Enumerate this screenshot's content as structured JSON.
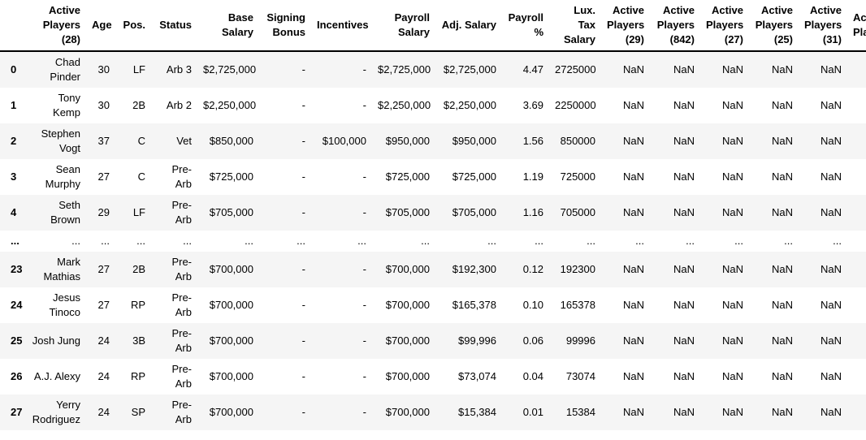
{
  "colors": {
    "background": "#ffffff",
    "stripe_row": "#f5f5f5",
    "header_border": "#000000",
    "text": "#000000"
  },
  "table": {
    "index_header": "",
    "columns": [
      {
        "key": "active_players_28",
        "label": "Active Players (28)"
      },
      {
        "key": "age",
        "label": "Age"
      },
      {
        "key": "pos",
        "label": "Pos."
      },
      {
        "key": "status",
        "label": "Status"
      },
      {
        "key": "base_salary",
        "label": "Base Salary"
      },
      {
        "key": "signing_bonus",
        "label": "Signing Bonus"
      },
      {
        "key": "incentives",
        "label": "Incentives"
      },
      {
        "key": "payroll_salary",
        "label": "Payroll Salary"
      },
      {
        "key": "adj_salary",
        "label": "Adj. Salary"
      },
      {
        "key": "payroll_pct",
        "label": "Payroll %"
      },
      {
        "key": "lux_tax_salary",
        "label": "Lux. Tax Salary"
      },
      {
        "key": "active_players_29",
        "label": "Active Players (29)"
      },
      {
        "key": "active_players_842",
        "label": "Active Players (842)"
      },
      {
        "key": "active_players_27",
        "label": "Active Players (27)"
      },
      {
        "key": "active_players_25",
        "label": "Active Players (25)"
      },
      {
        "key": "active_players_31",
        "label": "Active Players (31)"
      },
      {
        "key": "active_players_clipped",
        "label": "Active Players",
        "clipped": true
      }
    ],
    "rows": [
      {
        "index": "0",
        "cells": [
          "Chad Pinder",
          "30",
          "LF",
          "Arb 3",
          "$2,725,000",
          "-",
          "-",
          "$2,725,000",
          "$2,725,000",
          "4.47",
          "2725000",
          "NaN",
          "NaN",
          "NaN",
          "NaN",
          "NaN",
          ""
        ]
      },
      {
        "index": "1",
        "cells": [
          "Tony Kemp",
          "30",
          "2B",
          "Arb 2",
          "$2,250,000",
          "-",
          "-",
          "$2,250,000",
          "$2,250,000",
          "3.69",
          "2250000",
          "NaN",
          "NaN",
          "NaN",
          "NaN",
          "NaN",
          ""
        ]
      },
      {
        "index": "2",
        "cells": [
          "Stephen Vogt",
          "37",
          "C",
          "Vet",
          "$850,000",
          "-",
          "$100,000",
          "$950,000",
          "$950,000",
          "1.56",
          "850000",
          "NaN",
          "NaN",
          "NaN",
          "NaN",
          "NaN",
          ""
        ]
      },
      {
        "index": "3",
        "cells": [
          "Sean Murphy",
          "27",
          "C",
          "Pre-Arb",
          "$725,000",
          "-",
          "-",
          "$725,000",
          "$725,000",
          "1.19",
          "725000",
          "NaN",
          "NaN",
          "NaN",
          "NaN",
          "NaN",
          ""
        ]
      },
      {
        "index": "4",
        "cells": [
          "Seth Brown",
          "29",
          "LF",
          "Pre-Arb",
          "$705,000",
          "-",
          "-",
          "$705,000",
          "$705,000",
          "1.16",
          "705000",
          "NaN",
          "NaN",
          "NaN",
          "NaN",
          "NaN",
          ""
        ]
      },
      {
        "index": "...",
        "cells": [
          "...",
          "...",
          "...",
          "...",
          "...",
          "...",
          "...",
          "...",
          "...",
          "...",
          "...",
          "...",
          "...",
          "...",
          "...",
          "...",
          "..."
        ]
      },
      {
        "index": "23",
        "cells": [
          "Mark Mathias",
          "27",
          "2B",
          "Pre-Arb",
          "$700,000",
          "-",
          "-",
          "$700,000",
          "$192,300",
          "0.12",
          "192300",
          "NaN",
          "NaN",
          "NaN",
          "NaN",
          "NaN",
          ""
        ]
      },
      {
        "index": "24",
        "cells": [
          "Jesus Tinoco",
          "27",
          "RP",
          "Pre-Arb",
          "$700,000",
          "-",
          "-",
          "$700,000",
          "$165,378",
          "0.10",
          "165378",
          "NaN",
          "NaN",
          "NaN",
          "NaN",
          "NaN",
          ""
        ]
      },
      {
        "index": "25",
        "cells": [
          "Josh Jung",
          "24",
          "3B",
          "Pre-Arb",
          "$700,000",
          "-",
          "-",
          "$700,000",
          "$99,996",
          "0.06",
          "99996",
          "NaN",
          "NaN",
          "NaN",
          "NaN",
          "NaN",
          ""
        ]
      },
      {
        "index": "26",
        "cells": [
          "A.J. Alexy",
          "24",
          "RP",
          "Pre-Arb",
          "$700,000",
          "-",
          "-",
          "$700,000",
          "$73,074",
          "0.04",
          "73074",
          "NaN",
          "NaN",
          "NaN",
          "NaN",
          "NaN",
          ""
        ]
      },
      {
        "index": "27",
        "cells": [
          "Yerry Rodriguez",
          "24",
          "SP",
          "Pre-Arb",
          "$700,000",
          "-",
          "-",
          "$700,000",
          "$15,384",
          "0.01",
          "15384",
          "NaN",
          "NaN",
          "NaN",
          "NaN",
          "NaN",
          ""
        ]
      }
    ]
  }
}
